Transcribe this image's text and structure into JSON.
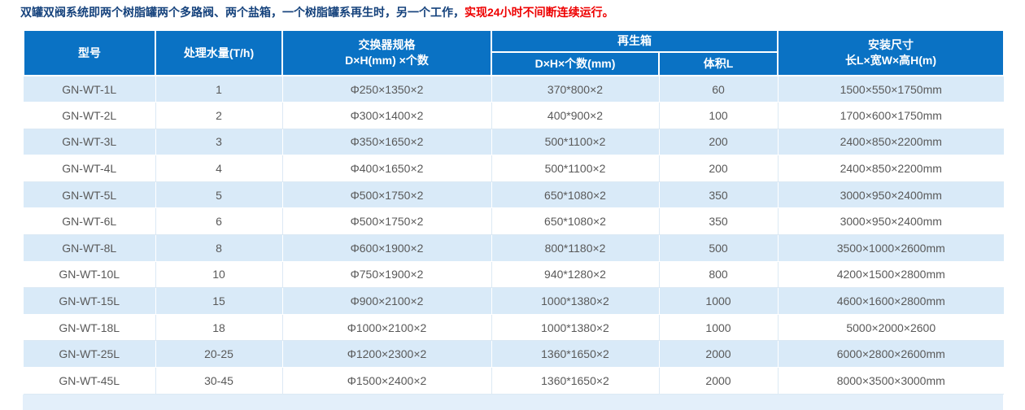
{
  "intro": {
    "normal_text": "双罐双阀系统即两个树脂罐两个多路阀、两个盐箱，一个树脂罐系再生时，另一个工作，",
    "highlight_text": "实现24小时不间断连续运行。"
  },
  "table": {
    "headers": {
      "model": "型号",
      "capacity": "处理水量(T/h)",
      "exchanger_line1": "交换器规格",
      "exchanger_line2": "D×H(mm) ×个数",
      "regen_group": "再生箱",
      "regen_size": "D×H×个数(mm)",
      "regen_volume": "体积L",
      "install_line1": "安装尺寸",
      "install_line2": "长L×宽W×高H(m)"
    },
    "rows": [
      [
        "GN-WT-1L",
        "1",
        "Φ250×1350×2",
        "370*800×2",
        "60",
        "1500×550×1750mm"
      ],
      [
        "GN-WT-2L",
        "2",
        "Φ300×1400×2",
        "400*900×2",
        "100",
        "1700×600×1750mm"
      ],
      [
        "GN-WT-3L",
        "3",
        "Φ350×1650×2",
        "500*1100×2",
        "200",
        "2400×850×2200mm"
      ],
      [
        "GN-WT-4L",
        "4",
        "Φ400×1650×2",
        "500*1100×2",
        "200",
        "2400×850×2200mm"
      ],
      [
        "GN-WT-5L",
        "5",
        "Φ500×1750×2",
        "650*1080×2",
        "350",
        "3000×950×2400mm"
      ],
      [
        "GN-WT-6L",
        "6",
        "Φ500×1750×2",
        "650*1080×2",
        "350",
        "3000×950×2400mm"
      ],
      [
        "GN-WT-8L",
        "8",
        "Φ600×1900×2",
        "800*1180×2",
        "500",
        "3500×1000×2600mm"
      ],
      [
        "GN-WT-10L",
        "10",
        "Φ750×1900×2",
        "940*1280×2",
        "800",
        "4200×1500×2800mm"
      ],
      [
        "GN-WT-15L",
        "15",
        "Φ900×2100×2",
        "1000*1380×2",
        "1000",
        "4600×1600×2800mm"
      ],
      [
        "GN-WT-18L",
        "18",
        "Φ1000×2100×2",
        "1000*1380×2",
        "1000",
        "5000×2000×2600"
      ],
      [
        "GN-WT-25L",
        "20-25",
        "Φ1200×2300×2",
        "1360*1650×2",
        "2000",
        "6000×2800×2600mm"
      ],
      [
        "GN-WT-45L",
        "30-45",
        "Φ1500×2400×2",
        "1360*1650×2",
        "2000",
        "8000×3500×3000mm"
      ]
    ]
  },
  "colors": {
    "header_bg": "#0a72c4",
    "stripe_bg": "#d9eaf8",
    "intro_text": "#15427c",
    "highlight_text": "#ee0000",
    "body_text": "#595959"
  }
}
